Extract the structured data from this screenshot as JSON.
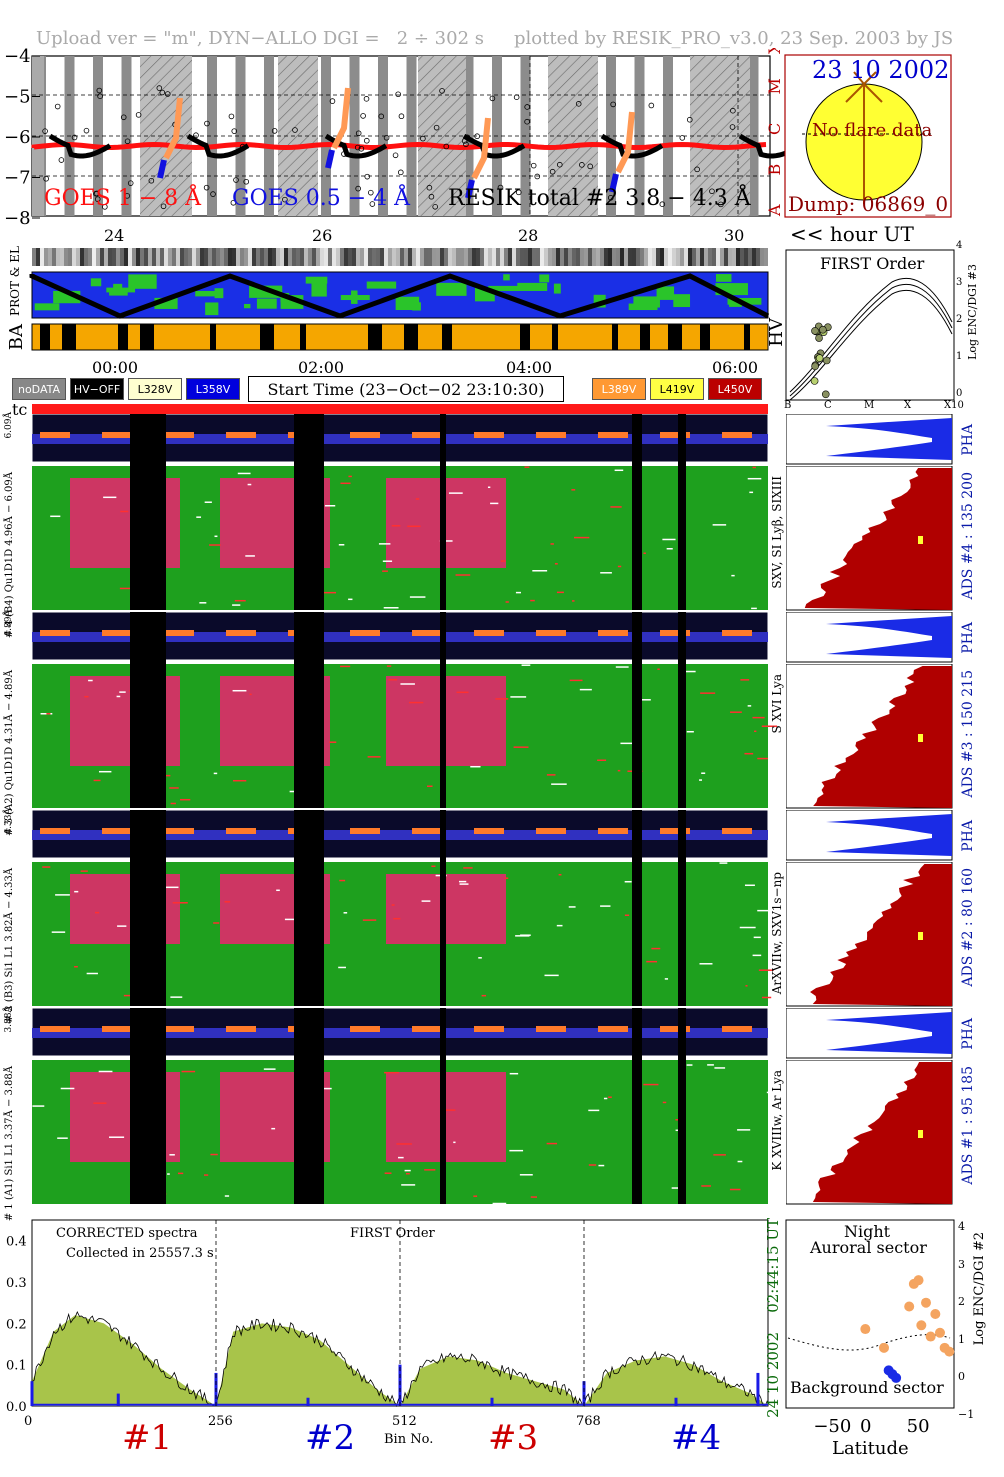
{
  "header": {
    "left": "Upload ver = \"m\", DYN−ALLO DGI =   2 ÷ 302 s",
    "right": "plotted by RESIK_PRO_v3.0, 23 Sep. 2003 by JS"
  },
  "goes_panel": {
    "yticks": [
      "−4",
      "−5",
      "−6",
      "−7",
      "−8"
    ],
    "right_class_labels": [
      "X",
      "M",
      "C",
      "B",
      "A"
    ],
    "legend_goes18": "GOES 1 − 8 Å",
    "legend_goes054": "GOES 0.5 − 4 Å",
    "legend_resik": "RESIK total #2  3.8 − 4.3 Å",
    "hour_ticks": [
      "24",
      "26",
      "28",
      "30"
    ],
    "hour_label": "<< hour UT",
    "colors": {
      "goes18": "#ff1010",
      "goes054": "#1010e0",
      "resik": "#000000",
      "hatch_gray": "#8c8c8c"
    }
  },
  "sun_panel": {
    "date": "23 10 2002",
    "note": "No flare data",
    "dump": "Dump: 06869_0",
    "colors": {
      "disk": "#ffff33",
      "frame": "#aa0000",
      "text": "#8b0000",
      "date": "#0000cc"
    }
  },
  "status_bars": {
    "label_prot": "PROT & EL",
    "label_ba": "BA",
    "label_hv": "HV"
  },
  "time_axis": {
    "ticks": [
      "00:00",
      "02:00",
      "04:00",
      "06:00"
    ],
    "start_time": "Start Time (23−Oct−02 23:10:30)"
  },
  "legend": {
    "items_left": [
      {
        "label": "noDATA",
        "bg": "#888888",
        "fg": "#ffffff"
      },
      {
        "label": "HV−OFF",
        "bg": "#000000",
        "fg": "#ffffff"
      },
      {
        "label": "L328V",
        "bg": "#ffffd0",
        "fg": "#000000"
      },
      {
        "label": "L358V",
        "bg": "#0000dd",
        "fg": "#ffffff"
      }
    ],
    "items_right": [
      {
        "label": "L389V",
        "bg": "#ff9933",
        "fg": "#ffffff"
      },
      {
        "label": "L419V",
        "bg": "#ffff44",
        "fg": "#000000"
      },
      {
        "label": "L450V",
        "bg": "#bb0000",
        "fg": "#ffffff"
      }
    ],
    "tc_label": "tc"
  },
  "first_order_panel": {
    "title": "FIRST Order",
    "xticks": [
      "B",
      "C",
      "M",
      "X",
      "X10"
    ],
    "yticks": [
      "0",
      "1",
      "2",
      "3",
      "4"
    ],
    "ylabel": "Log ENC/DGI #3"
  },
  "channels": [
    {
      "pha_label": "6.09Å",
      "label": "# 4 (B4) Qu1D1D 4.96Å − 6.09Å",
      "line_label": "SXV, SI Lyβ, SIXIII",
      "ads": "ADS #4 :  135 200"
    },
    {
      "pha_label": "4.89Å",
      "label": "# 3 (A2) Qu1D1D 4.31Å − 4.89Å",
      "line_label": "S XVI Lya",
      "ads": "ADS #3 :  150 215"
    },
    {
      "pha_label": "4.33Å",
      "label": "# 2 (B3) Si1 L1  3.82Å − 4.33Å",
      "line_label": "ArXVIIw, SXV1s−np",
      "ads": "ADS #2 :   80 160"
    },
    {
      "pha_label": "3.88Å",
      "label": "# 1 (A1) Si1 L1  3.37Å − 3.88Å",
      "line_label": "K XVIIIw, Ar Lya",
      "ads": "ADS #1 :   95 185"
    }
  ],
  "pha_text": "PHA",
  "spectrum_panel": {
    "corrected": "CORRECTED spectra",
    "collected": "Collected in 25557.3 s",
    "first_order": "FIRST Order",
    "xticks": [
      "0",
      "256",
      "512",
      "768"
    ],
    "yticks": [
      "0.0",
      "0.1",
      "0.2",
      "0.3",
      "0.4"
    ],
    "xlabel": "Bin No.",
    "channel_labels": [
      "#1",
      "#2",
      "#3",
      "#4"
    ],
    "channel_colors": [
      "#cc0000",
      "#0000cc",
      "#cc0000",
      "#0000cc"
    ],
    "side_date": "24 10 2002",
    "side_time": "02:44:15 UT",
    "fill_color": "#a8c44a",
    "pha_color": "#1a1ae6"
  },
  "chart_data": [
    {
      "type": "area",
      "title": "",
      "xlabel": "Bin No.",
      "ylabel": "",
      "xlim": [
        0,
        1024
      ],
      "ylim": [
        0,
        0.45
      ],
      "series": [
        {
          "name": "",
          "x": [
            0,
            30,
            60,
            100,
            140,
            180,
            220,
            256,
            280,
            320,
            360,
            400,
            440,
            480,
            512,
            540,
            580,
            620,
            660,
            700,
            740,
            768,
            800,
            840,
            880,
            920,
            960,
            1000,
            1024
          ],
          "values": [
            0.06,
            0.18,
            0.22,
            0.2,
            0.15,
            0.09,
            0.04,
            0.0,
            0.18,
            0.2,
            0.19,
            0.16,
            0.1,
            0.04,
            0.0,
            0.09,
            0.12,
            0.11,
            0.08,
            0.06,
            0.04,
            0.0,
            0.08,
            0.11,
            0.12,
            0.1,
            0.06,
            0.03,
            0.0
          ]
        }
      ]
    },
    {
      "type": "scatter",
      "title": "",
      "xlabel": "Latitude",
      "ylabel": "Log ENC/DGI #2",
      "xlim": [
        -90,
        90
      ],
      "ylim": [
        -1,
        4
      ],
      "annotations": [
        "Night",
        "Auroral sector",
        "Background sector"
      ],
      "xticks": [
        "−50",
        "0",
        "50"
      ],
      "yticks": [
        "−1",
        "0",
        "1",
        "2",
        "3",
        "4"
      ],
      "series": [
        {
          "name": "",
          "x": [
            -5,
            15,
            42,
            47,
            52,
            55,
            60,
            65,
            70,
            75,
            80,
            85
          ],
          "values": [
            1.1,
            0.6,
            1.7,
            2.3,
            2.4,
            1.2,
            1.8,
            0.9,
            1.5,
            1.0,
            0.6,
            0.5
          ]
        },
        {
          "name": "",
          "x": [
            20,
            24,
            28
          ],
          "values": [
            0.0,
            -0.1,
            -0.2
          ]
        }
      ]
    }
  ]
}
